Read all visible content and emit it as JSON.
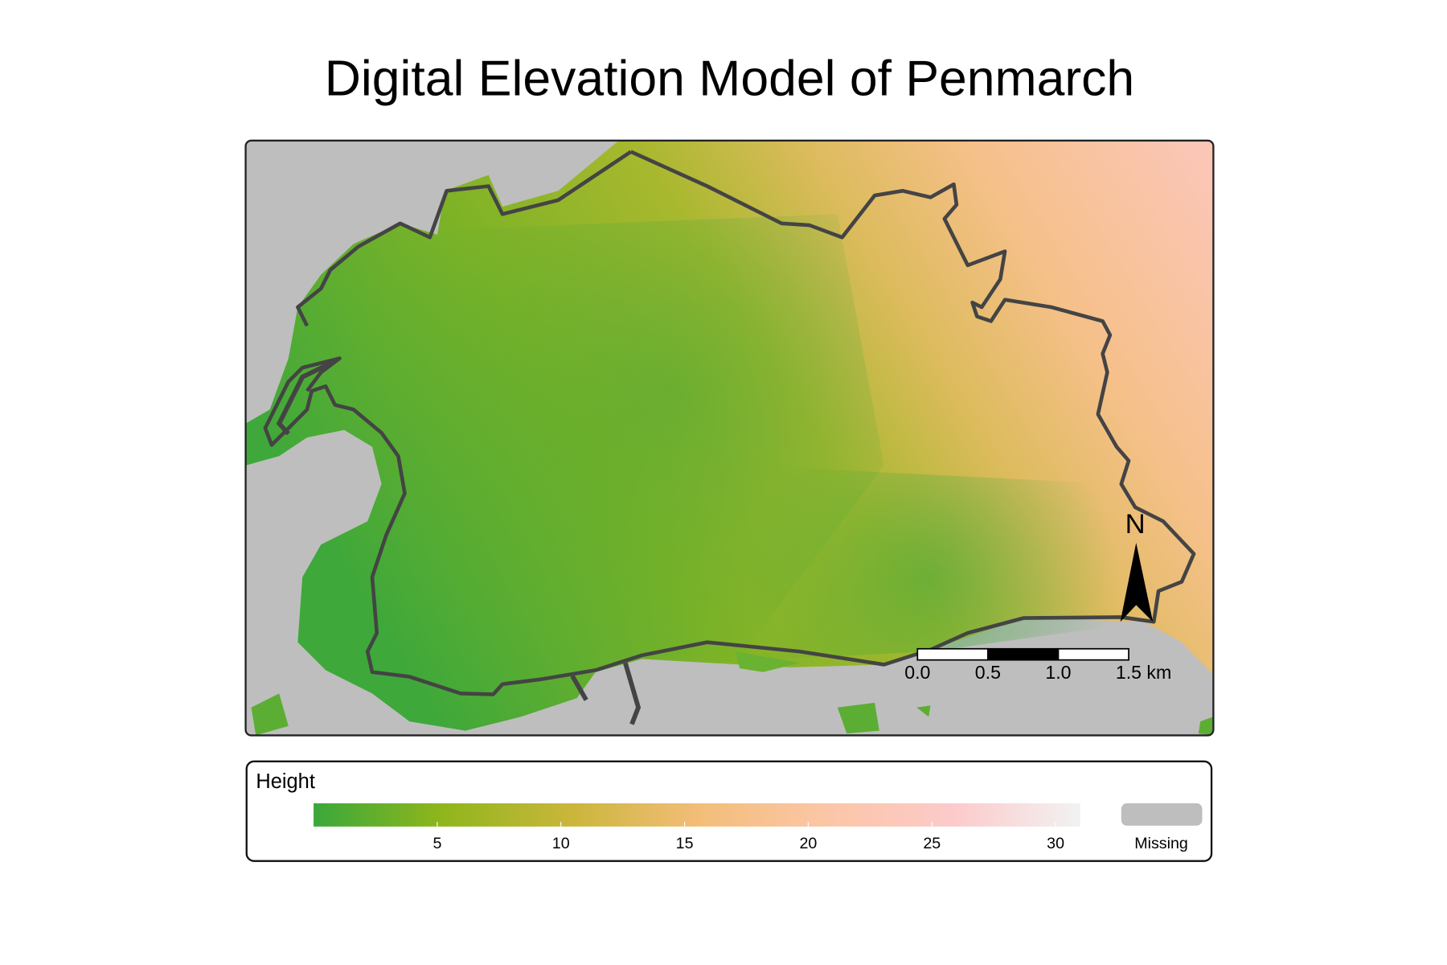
{
  "title": "Digital Elevation Model of Penmarch",
  "map": {
    "water_color": "#bebebe",
    "outline_color": "#444444"
  },
  "north_arrow": {
    "label": "N"
  },
  "scale_bar": {
    "unit_ticks": [
      {
        "value": 0,
        "label": "0.0"
      },
      {
        "value": 0.5,
        "label": "0.5"
      },
      {
        "value": 1,
        "label": "1.0"
      },
      {
        "value": 1.5,
        "label": "1.5 km"
      }
    ]
  },
  "legend": {
    "title": "Height",
    "lim": [
      0,
      31
    ],
    "ticks": [
      5,
      10,
      15,
      20,
      25,
      30
    ],
    "colors": [
      "#3aa83a",
      "#8fb61c",
      "#c9b63a",
      "#f3bd78",
      "#fbc6a6",
      "#fccaca",
      "#f2f2f2"
    ],
    "missing_label": "Missing",
    "missing_color": "#bebebe"
  }
}
